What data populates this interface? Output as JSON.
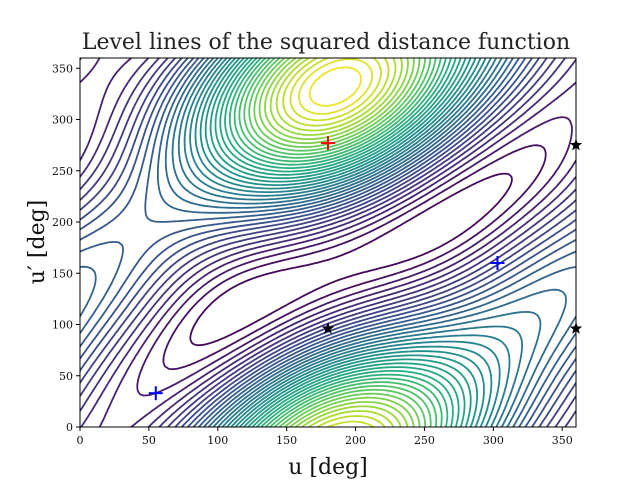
{
  "chart_data": {
    "type": "contour",
    "title": "Level lines of the squared distance function",
    "xlabel": "u [deg]",
    "ylabel": "u′ [deg]",
    "xlim": [
      0,
      360
    ],
    "ylim": [
      0,
      360
    ],
    "xticks": [
      0,
      50,
      100,
      150,
      200,
      250,
      300,
      350
    ],
    "yticks": [
      0,
      50,
      100,
      150,
      200,
      250,
      300,
      350
    ],
    "grid": false,
    "colormap": "viridis",
    "markers": [
      {
        "kind": "maximum",
        "symbol": "plus",
        "color": "#ff0000",
        "x": 180,
        "y": 277
      },
      {
        "kind": "minimum",
        "symbol": "plus",
        "color": "#0000ff",
        "x": 55,
        "y": 33
      },
      {
        "kind": "minimum",
        "symbol": "plus",
        "color": "#0000ff",
        "x": 303,
        "y": 160
      },
      {
        "kind": "saddle",
        "symbol": "star",
        "color": "#000000",
        "x": 180,
        "y": 96
      },
      {
        "kind": "saddle",
        "symbol": "star",
        "color": "#000000",
        "x": 360,
        "y": 96
      },
      {
        "kind": "saddle",
        "symbol": "star",
        "color": "#000000",
        "x": 360,
        "y": 275
      }
    ]
  }
}
